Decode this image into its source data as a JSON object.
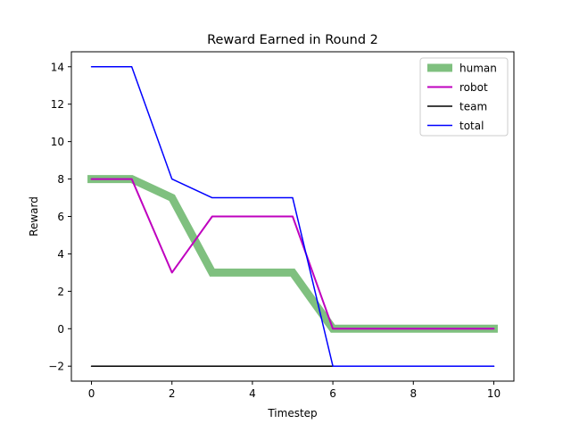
{
  "chart_data": {
    "type": "line",
    "title": "Reward Earned in Round 2",
    "xlabel": "Timestep",
    "ylabel": "Reward",
    "xlim": [
      -0.5,
      10.5
    ],
    "ylim": [
      -2.8,
      14.8
    ],
    "xticks": [
      0,
      2,
      4,
      6,
      8,
      10
    ],
    "yticks": [
      -2,
      0,
      2,
      4,
      6,
      8,
      10,
      12,
      14
    ],
    "ytick_labels": [
      "−2",
      "0",
      "2",
      "4",
      "6",
      "8",
      "10",
      "12",
      "14"
    ],
    "grid": false,
    "legend_position": "top-right",
    "x": [
      0,
      1,
      2,
      3,
      4,
      5,
      6,
      7,
      8,
      9,
      10
    ],
    "series": [
      {
        "name": "human",
        "color": "#7fc07f",
        "line": "thick",
        "values": [
          8,
          8,
          7,
          3,
          3,
          3,
          0,
          0,
          0,
          0,
          0
        ]
      },
      {
        "name": "robot",
        "color": "#bf00bf",
        "line": "medium",
        "values": [
          8,
          8,
          3,
          6,
          6,
          6,
          0,
          0,
          0,
          0,
          0
        ]
      },
      {
        "name": "team",
        "color": "#000000",
        "line": "thin",
        "values": [
          -2,
          -2,
          -2,
          -2,
          -2,
          -2,
          -2,
          -2,
          -2,
          -2,
          -2
        ]
      },
      {
        "name": "total",
        "color": "#0000ff",
        "line": "thin",
        "values": [
          14,
          14,
          8,
          7,
          7,
          7,
          -2,
          -2,
          -2,
          -2,
          -2
        ]
      }
    ]
  }
}
